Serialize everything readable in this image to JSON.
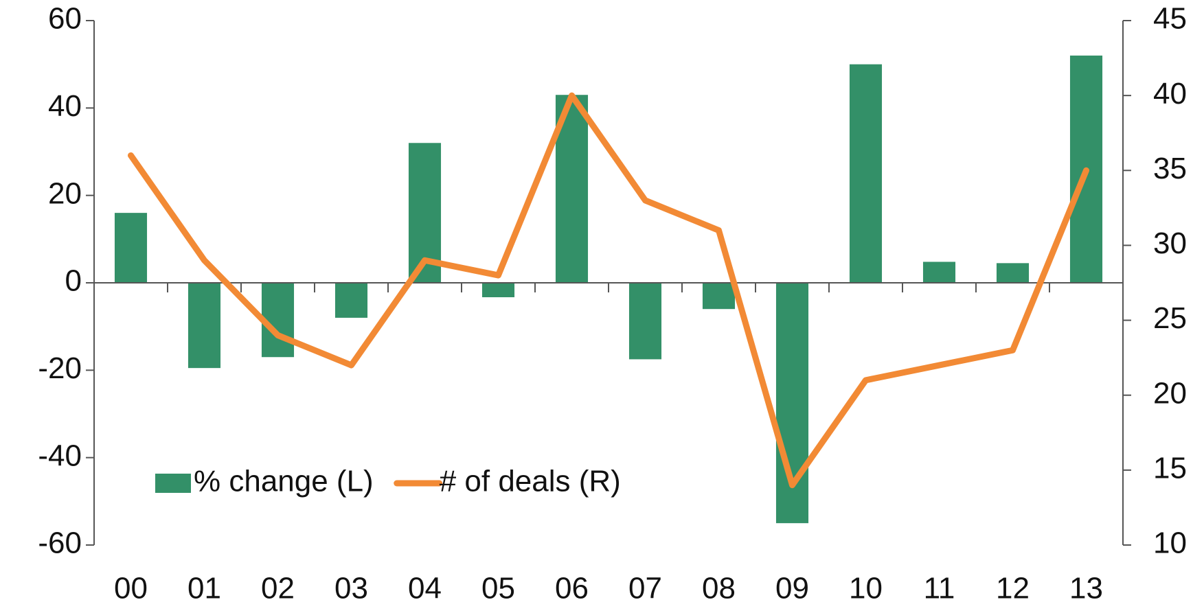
{
  "chart_data": {
    "type": "bar-line",
    "categories": [
      "00",
      "01",
      "02",
      "03",
      "04",
      "05",
      "06",
      "07",
      "08",
      "09",
      "10",
      "11",
      "12",
      "13"
    ],
    "series": [
      {
        "name": "% change (L)",
        "type": "bar",
        "color": "#339068",
        "axis": "y",
        "values": [
          16,
          -19.5,
          -17,
          -8,
          32,
          -3.3,
          43,
          -17.5,
          -6,
          -55,
          50,
          4.8,
          4.5,
          52
        ]
      },
      {
        "name": "# of deals (R)",
        "type": "line",
        "color": "#f28a35",
        "axis": "y2",
        "values": [
          36,
          29,
          24,
          22,
          29,
          28,
          40,
          33,
          31,
          14,
          21,
          22,
          23,
          35
        ]
      }
    ],
    "ylim": [
      -60,
      60
    ],
    "yticks": [
      -60,
      -40,
      -20,
      0,
      20,
      40,
      60
    ],
    "y2lim": [
      10,
      45
    ],
    "y2ticks": [
      10,
      15,
      20,
      25,
      30,
      35,
      40,
      45
    ],
    "legend": "lower left"
  }
}
